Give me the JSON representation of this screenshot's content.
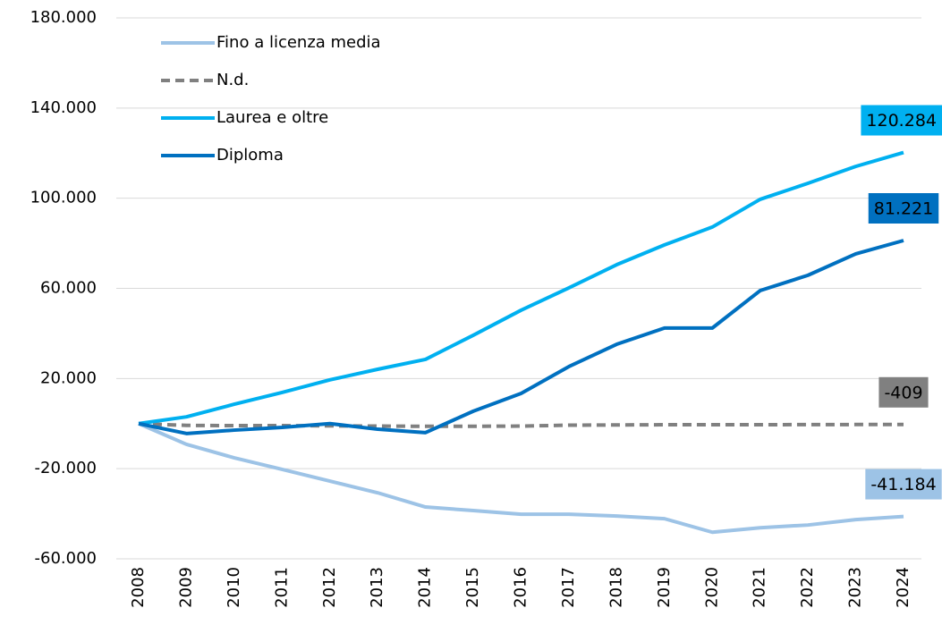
{
  "chart_data": {
    "type": "line",
    "categories": [
      "2008",
      "2009",
      "2010",
      "2011",
      "2012",
      "2013",
      "2014",
      "2015",
      "2016",
      "2017",
      "2018",
      "2019",
      "2020",
      "2021",
      "2022",
      "2023",
      "2024"
    ],
    "series": [
      {
        "name": "Fino a licenza media",
        "color": "#9dc3e6",
        "dash": false,
        "values": [
          0,
          -9200,
          -15200,
          -20300,
          -25500,
          -30700,
          -37000,
          -38600,
          -40200,
          -40200,
          -41000,
          -42200,
          -48200,
          -46200,
          -45000,
          -42600,
          -41184
        ],
        "value_labels": [
          null,
          null,
          null,
          null,
          null,
          null,
          null,
          null,
          null,
          null,
          null,
          null,
          null,
          null,
          null,
          null,
          "-41.184"
        ]
      },
      {
        "name": "N.d.",
        "color": "#808080",
        "dash": true,
        "values": [
          0,
          -800,
          -900,
          -900,
          -1000,
          -1100,
          -1200,
          -1200,
          -1100,
          -700,
          -600,
          -500,
          -500,
          -500,
          -450,
          -420,
          -409
        ],
        "value_labels": [
          null,
          null,
          null,
          null,
          null,
          null,
          null,
          null,
          null,
          null,
          null,
          null,
          null,
          null,
          null,
          null,
          "-409"
        ]
      },
      {
        "name": "Laurea e oltre",
        "color": "#00b0f0",
        "dash": false,
        "values": [
          0,
          3000,
          8600,
          13800,
          19400,
          24100,
          28500,
          39200,
          50300,
          60200,
          70500,
          79300,
          87200,
          99500,
          106600,
          114100,
          120284
        ],
        "value_labels": [
          null,
          null,
          null,
          null,
          null,
          null,
          null,
          null,
          null,
          null,
          null,
          null,
          null,
          null,
          null,
          null,
          "120.284"
        ]
      },
      {
        "name": "Diploma",
        "color": "#0070c0",
        "dash": false,
        "values": [
          0,
          -4400,
          -2900,
          -1700,
          0,
          -2500,
          -4000,
          5500,
          13400,
          25300,
          35200,
          42400,
          42400,
          59000,
          65800,
          75300,
          81221
        ],
        "value_labels": [
          null,
          null,
          null,
          null,
          null,
          null,
          null,
          null,
          null,
          null,
          null,
          null,
          null,
          null,
          null,
          null,
          "81.221"
        ]
      }
    ],
    "ylim": [
      -60000,
      180000
    ],
    "yticks": [
      {
        "value": -60000,
        "label": "-60.000"
      },
      {
        "value": -20000,
        "label": "-20.000"
      },
      {
        "value": 20000,
        "label": "20.000"
      },
      {
        "value": 60000,
        "label": "60.000"
      },
      {
        "value": 100000,
        "label": "100.000"
      },
      {
        "value": 140000,
        "label": "140.000"
      },
      {
        "value": 180000,
        "label": "180.000"
      }
    ],
    "grid": true,
    "legend": "upper left"
  }
}
